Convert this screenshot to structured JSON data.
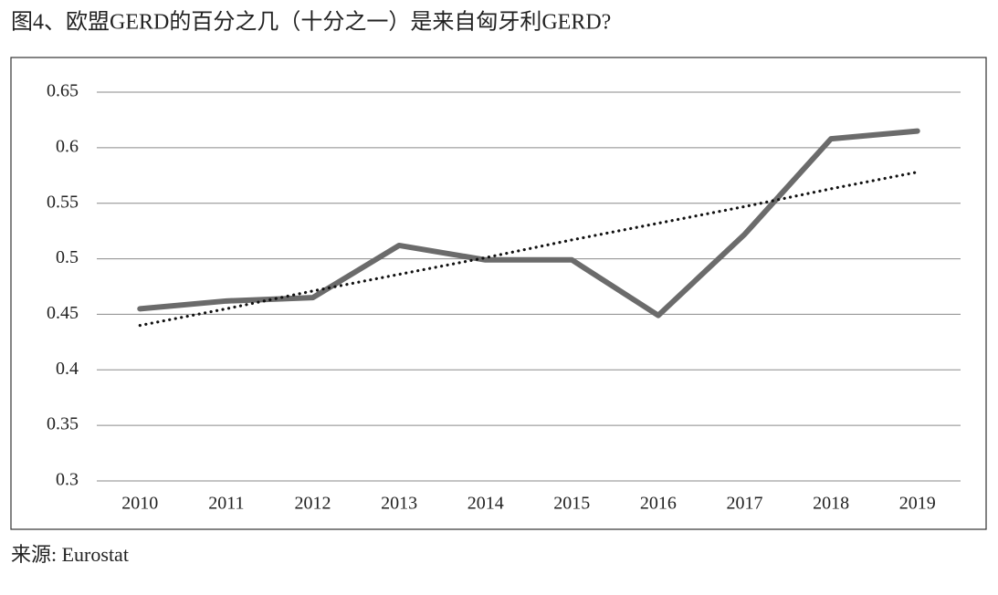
{
  "chart_data": {
    "type": "line",
    "title": "图4、欧盟GERD的百分之几（十分之一）是来自匈牙利GERD?",
    "source": "来源: Eurostat",
    "categories": [
      "2010",
      "2011",
      "2012",
      "2013",
      "2014",
      "2015",
      "2016",
      "2017",
      "2018",
      "2019"
    ],
    "series": [
      {
        "color": "#6b6b6b",
        "style": "solid",
        "values": [
          0.455,
          0.462,
          0.465,
          0.512,
          0.499,
          0.499,
          0.449,
          0.522,
          0.608,
          0.615
        ]
      },
      {
        "color": "#111111",
        "style": "dotted",
        "values": [
          0.44,
          0.455,
          0.471,
          0.486,
          0.501,
          0.517,
          0.532,
          0.547,
          0.563,
          0.578
        ]
      }
    ],
    "ylim": [
      0.3,
      0.65
    ],
    "yticks": [
      0.3,
      0.35,
      0.4,
      0.45,
      0.5,
      0.55,
      0.6,
      0.65
    ],
    "grid": true
  }
}
